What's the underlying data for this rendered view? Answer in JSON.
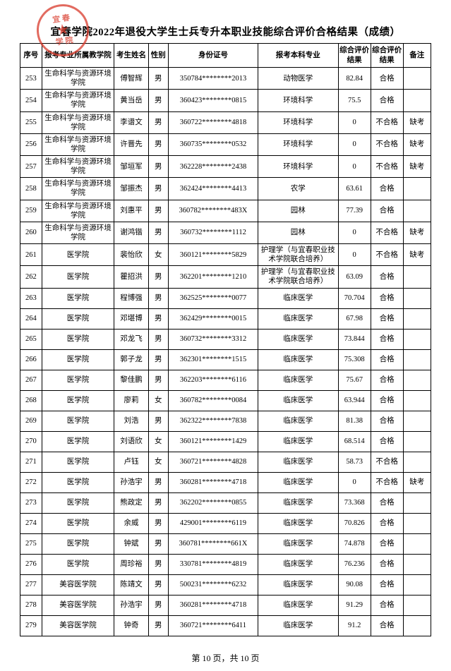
{
  "title": "宜春学院2022年退役大学生士兵专升本职业技能综合评价合格结果（成绩）",
  "footer": "第 10 页，共 10 页",
  "headers": {
    "seq": "序号",
    "dept": "报考专业所属教学院",
    "name": "考生姓名",
    "sex": "性别",
    "id": "身份证号",
    "major": "报考本科专业",
    "score": "综合评价结果",
    "res": "综合评价结果",
    "note": "备注"
  },
  "rows": [
    {
      "seq": "253",
      "dept": "生命科学与资源环境学院",
      "name": "傅智辉",
      "sex": "男",
      "id": "350784********2013",
      "major": "动物医学",
      "score": "82.84",
      "res": "合格",
      "note": ""
    },
    {
      "seq": "254",
      "dept": "生命科学与资源环境学院",
      "name": "黄当岳",
      "sex": "男",
      "id": "360423********0815",
      "major": "环境科学",
      "score": "75.5",
      "res": "合格",
      "note": ""
    },
    {
      "seq": "255",
      "dept": "生命科学与资源环境学院",
      "name": "李谱文",
      "sex": "男",
      "id": "360722********4818",
      "major": "环境科学",
      "score": "0",
      "res": "不合格",
      "note": "缺考"
    },
    {
      "seq": "256",
      "dept": "生命科学与资源环境学院",
      "name": "许晋先",
      "sex": "男",
      "id": "360735********0532",
      "major": "环境科学",
      "score": "0",
      "res": "不合格",
      "note": "缺考"
    },
    {
      "seq": "257",
      "dept": "生命科学与资源环境学院",
      "name": "邹垣军",
      "sex": "男",
      "id": "362228********2438",
      "major": "环境科学",
      "score": "0",
      "res": "不合格",
      "note": "缺考"
    },
    {
      "seq": "258",
      "dept": "生命科学与资源环境学院",
      "name": "邹振杰",
      "sex": "男",
      "id": "362424********4413",
      "major": "农学",
      "score": "63.61",
      "res": "合格",
      "note": ""
    },
    {
      "seq": "259",
      "dept": "生命科学与资源环境学院",
      "name": "刘惠平",
      "sex": "男",
      "id": "360782********483X",
      "major": "园林",
      "score": "77.39",
      "res": "合格",
      "note": ""
    },
    {
      "seq": "260",
      "dept": "生命科学与资源环境学院",
      "name": "谢鸿锴",
      "sex": "男",
      "id": "360732********1112",
      "major": "园林",
      "score": "0",
      "res": "不合格",
      "note": "缺考"
    },
    {
      "seq": "261",
      "dept": "医学院",
      "name": "裴怡欣",
      "sex": "女",
      "id": "360121********5829",
      "major": "护理学（与宜春职业技术学院联合培养）",
      "score": "0",
      "res": "不合格",
      "note": "缺考"
    },
    {
      "seq": "262",
      "dept": "医学院",
      "name": "瞿招洪",
      "sex": "男",
      "id": "362201********1210",
      "major": "护理学（与宜春职业技术学院联合培养）",
      "score": "63.09",
      "res": "合格",
      "note": ""
    },
    {
      "seq": "263",
      "dept": "医学院",
      "name": "程博强",
      "sex": "男",
      "id": "362525********0077",
      "major": "临床医学",
      "score": "70.704",
      "res": "合格",
      "note": ""
    },
    {
      "seq": "264",
      "dept": "医学院",
      "name": "邓堪博",
      "sex": "男",
      "id": "362429********0015",
      "major": "临床医学",
      "score": "67.98",
      "res": "合格",
      "note": ""
    },
    {
      "seq": "265",
      "dept": "医学院",
      "name": "邓龙飞",
      "sex": "男",
      "id": "360732********3312",
      "major": "临床医学",
      "score": "73.844",
      "res": "合格",
      "note": ""
    },
    {
      "seq": "266",
      "dept": "医学院",
      "name": "郭子龙",
      "sex": "男",
      "id": "362301********1515",
      "major": "临床医学",
      "score": "75.308",
      "res": "合格",
      "note": ""
    },
    {
      "seq": "267",
      "dept": "医学院",
      "name": "黎佳鹏",
      "sex": "男",
      "id": "362203********6116",
      "major": "临床医学",
      "score": "75.67",
      "res": "合格",
      "note": ""
    },
    {
      "seq": "268",
      "dept": "医学院",
      "name": "廖莉",
      "sex": "女",
      "id": "360782********0084",
      "major": "临床医学",
      "score": "63.944",
      "res": "合格",
      "note": ""
    },
    {
      "seq": "269",
      "dept": "医学院",
      "name": "刘浩",
      "sex": "男",
      "id": "362322********7838",
      "major": "临床医学",
      "score": "81.38",
      "res": "合格",
      "note": ""
    },
    {
      "seq": "270",
      "dept": "医学院",
      "name": "刘语欣",
      "sex": "女",
      "id": "360121********1429",
      "major": "临床医学",
      "score": "68.514",
      "res": "合格",
      "note": ""
    },
    {
      "seq": "271",
      "dept": "医学院",
      "name": "卢钰",
      "sex": "女",
      "id": "360721********4828",
      "major": "临床医学",
      "score": "58.73",
      "res": "不合格",
      "note": ""
    },
    {
      "seq": "272",
      "dept": "医学院",
      "name": "孙浩宇",
      "sex": "男",
      "id": "360281********4718",
      "major": "临床医学",
      "score": "0",
      "res": "不合格",
      "note": "缺考"
    },
    {
      "seq": "273",
      "dept": "医学院",
      "name": "熊政定",
      "sex": "男",
      "id": "362202********0855",
      "major": "临床医学",
      "score": "73.368",
      "res": "合格",
      "note": ""
    },
    {
      "seq": "274",
      "dept": "医学院",
      "name": "余威",
      "sex": "男",
      "id": "429001********6119",
      "major": "临床医学",
      "score": "70.826",
      "res": "合格",
      "note": ""
    },
    {
      "seq": "275",
      "dept": "医学院",
      "name": "钟斌",
      "sex": "男",
      "id": "360781********661X",
      "major": "临床医学",
      "score": "74.878",
      "res": "合格",
      "note": ""
    },
    {
      "seq": "276",
      "dept": "医学院",
      "name": "周珍裕",
      "sex": "男",
      "id": "330781********4819",
      "major": "临床医学",
      "score": "76.236",
      "res": "合格",
      "note": ""
    },
    {
      "seq": "277",
      "dept": "美容医学院",
      "name": "陈靖文",
      "sex": "男",
      "id": "500231********6232",
      "major": "临床医学",
      "score": "90.08",
      "res": "合格",
      "note": ""
    },
    {
      "seq": "278",
      "dept": "美容医学院",
      "name": "孙浩宇",
      "sex": "男",
      "id": "360281********4718",
      "major": "临床医学",
      "score": "91.29",
      "res": "合格",
      "note": ""
    },
    {
      "seq": "279",
      "dept": "美容医学院",
      "name": "钟奇",
      "sex": "男",
      "id": "360721********6411",
      "major": "临床医学",
      "score": "91.2",
      "res": "合格",
      "note": ""
    }
  ]
}
